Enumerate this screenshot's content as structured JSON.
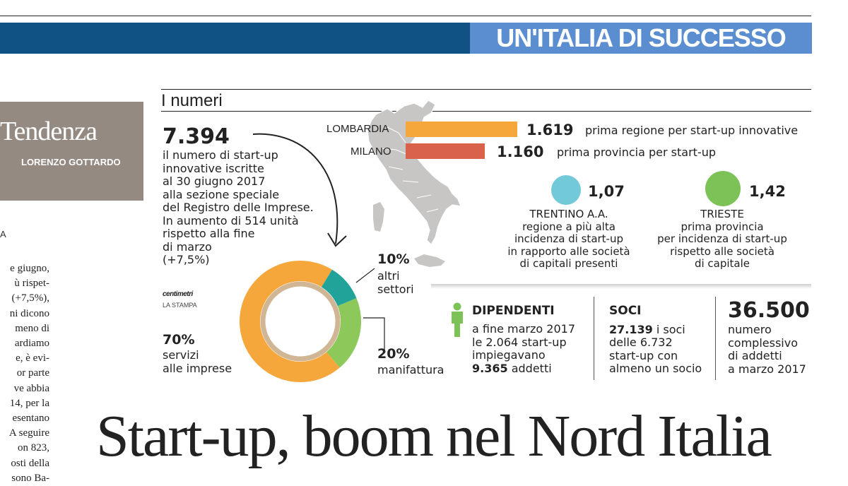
{
  "header": {
    "section_title": "UN'ITALIA DI SUCCESSO"
  },
  "sidebar": {
    "column_label": "Tendenza",
    "author": "LORENZO GOTTARDO",
    "article_fragment_label": "A",
    "article_lines": [
      "e giugno,",
      "ù rispet-",
      "(+7,5%),",
      "ni dicono",
      "meno di",
      "ardiamo",
      "e, è evi-",
      "or parte",
      "ve abbia",
      "14, per la",
      "esentano",
      "A seguire",
      "on 823,",
      "osti della",
      "sono Ba-"
    ]
  },
  "infographic": {
    "heading": "I numeri",
    "total": {
      "value": "7.394",
      "lines": [
        "il numero di start-up",
        "innovative iscritte",
        "al 30 giugno 2017",
        "alla sezione speciale",
        "del Registro delle Imprese.",
        "In aumento di 514 unità",
        "rispetto alla fine",
        "di marzo",
        "(+7,5%)"
      ]
    },
    "credit": {
      "brand": "centimetri",
      "source": "LA STAMPA"
    },
    "ranking": [
      {
        "place": "LOMBARDIA",
        "value": "1.619",
        "desc": "prima regione per start-up innovative",
        "color": "#f5a73b"
      },
      {
        "place": "MILANO",
        "value": "1.160",
        "desc": "prima provincia per start-up",
        "color": "#d9634a"
      }
    ],
    "incidence": [
      {
        "value": "1,07",
        "color": "#72cad9",
        "lines": [
          "TRENTINO A.A.",
          "regione a più alta",
          "incidenza di start-up",
          "in rapporto alle società",
          "di capitali presenti"
        ]
      },
      {
        "value": "1,42",
        "color": "#7cc257",
        "lines": [
          "TRIESTE",
          "prima provincia",
          "per incidenza di start-up",
          "rispetto alle società",
          "di capitale"
        ]
      }
    ],
    "stats": {
      "dipendenti": {
        "title": "DIPENDENTI",
        "lines": [
          "a fine marzo 2017",
          "le 2.064 start-up",
          "impiegavano"
        ],
        "bold_value": "9.365",
        "suffix": "addetti",
        "icon_color": "#7cc257"
      },
      "soci": {
        "title": "SOCI",
        "bold_value": "27.139",
        "first_suffix": "i soci",
        "lines": [
          "delle 6.732",
          "start-up con",
          "almeno un socio"
        ]
      },
      "addetti": {
        "value": "36.500",
        "lines": [
          "numero",
          "complessivo",
          "di addetti",
          "a marzo 2017"
        ]
      }
    }
  },
  "chart_data": {
    "type": "pie",
    "donut": true,
    "categories": [
      "servizi alle imprese",
      "altri settori",
      "manifattura"
    ],
    "values": [
      70,
      10,
      20
    ],
    "value_labels": [
      "70%",
      "10%",
      "20%"
    ],
    "label_lines": [
      [
        "servizi",
        "alle imprese"
      ],
      [
        "altri",
        "settori"
      ],
      [
        "manifattura"
      ]
    ],
    "colors": [
      "#f5a73b",
      "#21a39a",
      "#8cc85a"
    ]
  },
  "headline": "Start-up, boom nel Nord Italia"
}
